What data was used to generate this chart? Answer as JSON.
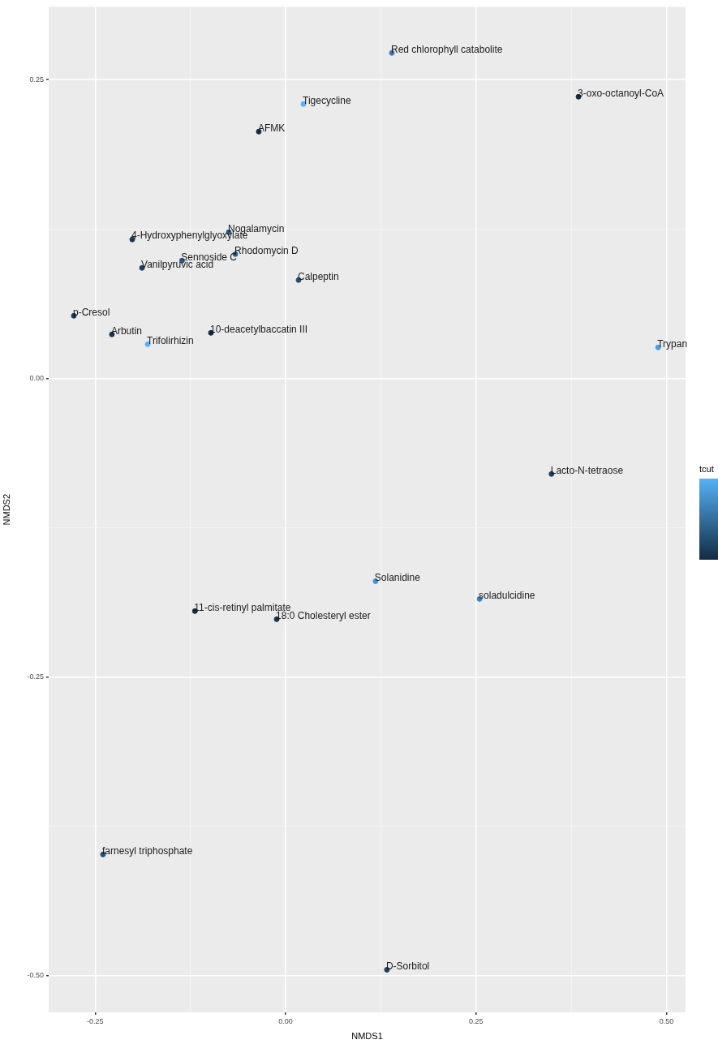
{
  "chart_data": {
    "type": "scatter",
    "xlabel": "NMDS1",
    "ylabel": "NMDS2",
    "clabel": "tcut",
    "x": [
      0.1395,
      0.3845,
      0.0234,
      -0.0352,
      -0.0746,
      -0.2013,
      -0.066,
      -0.136,
      -0.1885,
      0.017,
      -0.278,
      -0.228,
      -0.098,
      -0.181,
      0.489,
      0.349,
      0.118,
      0.2546,
      -0.119,
      -0.0117,
      -0.2397,
      0.133
    ],
    "values": [
      0.2724,
      0.2357,
      0.2296,
      0.2065,
      0.1223,
      0.1162,
      0.1039,
      0.0985,
      0.0924,
      0.0822,
      0.0523,
      0.0367,
      0.038,
      0.0285,
      0.0258,
      -0.0802,
      -0.17,
      -0.1848,
      -0.195,
      -0.2018,
      -0.3988,
      -0.4953
    ],
    "colors": [
      "#3a7ab5",
      "#132b43",
      "#56b1f7",
      "#16304a",
      "#2a5a86",
      "#1a3650",
      "#2e6496",
      "#2b5d8a",
      "#1f4060",
      "#24507a",
      "#1d3c5a",
      "#1a3650",
      "#132b43",
      "#56b1f7",
      "#4a9de0",
      "#1f4060",
      "#4a95d5",
      "#3f83c0",
      "#132b43",
      "#1a3650",
      "#24507a",
      "#1f4060"
    ],
    "annotations": [
      {
        "text": "Red chlorophyll catabolite",
        "x": 0.1395,
        "y": 0.2724
      },
      {
        "text": "3-oxo-octanoyl-CoA",
        "x": 0.3845,
        "y": 0.2357
      },
      {
        "text": "Tigecycline",
        "x": 0.0234,
        "y": 0.2296
      },
      {
        "text": "AFMK",
        "x": -0.0352,
        "y": 0.2065
      },
      {
        "text": "Nogalamycin",
        "x": -0.0746,
        "y": 0.1223
      },
      {
        "text": "4-Hydroxyphenylglyoxylate",
        "x": -0.2013,
        "y": 0.1162
      },
      {
        "text": "Rhodomycin D",
        "x": -0.066,
        "y": 0.1039
      },
      {
        "text": "Sennoside C",
        "x": -0.136,
        "y": 0.0985
      },
      {
        "text": "Vanilpyruvic acid",
        "x": -0.1885,
        "y": 0.0924
      },
      {
        "text": "Calpeptin",
        "x": 0.017,
        "y": 0.0822
      },
      {
        "text": "p-Cresol",
        "x": -0.278,
        "y": 0.0523
      },
      {
        "text": "Arbutin",
        "x": -0.228,
        "y": 0.0367
      },
      {
        "text": "10-deacetylbaccatin III",
        "x": -0.098,
        "y": 0.038
      },
      {
        "text": "Trifolirhizin",
        "x": -0.181,
        "y": 0.0285
      },
      {
        "text": "Trypan",
        "x": 0.489,
        "y": 0.0258
      },
      {
        "text": "Lacto-N-tetraose",
        "x": 0.349,
        "y": -0.0802
      },
      {
        "text": "Solanidine",
        "x": 0.118,
        "y": -0.17
      },
      {
        "text": "soladulcidine",
        "x": 0.2546,
        "y": -0.1848
      },
      {
        "text": "11-cis-retinyl palmitate",
        "x": -0.119,
        "y": -0.195
      },
      {
        "text": "18:0 Cholesteryl ester",
        "x": -0.0117,
        "y": -0.2018
      },
      {
        "text": "farnesyl triphosphate",
        "x": -0.2397,
        "y": -0.3988
      },
      {
        "text": "D-Sorbitol",
        "x": 0.133,
        "y": -0.4953
      }
    ],
    "xlim": [
      -0.311,
      0.525
    ],
    "ylim": [
      -0.531,
      0.311
    ],
    "xticks": [
      {
        "value": -0.25,
        "label": "-0.25"
      },
      {
        "value": -0.125,
        "label": null
      },
      {
        "value": 0,
        "label": "0.00"
      },
      {
        "value": 0.125,
        "label": null
      },
      {
        "value": 0.25,
        "label": "0.25"
      },
      {
        "value": 0.375,
        "label": null
      },
      {
        "value": 0.5,
        "label": "0.50"
      }
    ],
    "yticks": [
      {
        "value": -0.5,
        "label": "-0.50"
      },
      {
        "value": -0.375,
        "label": null
      },
      {
        "value": -0.25,
        "label": "-0.25"
      },
      {
        "value": -0.125,
        "label": null
      },
      {
        "value": 0,
        "label": "0.00"
      },
      {
        "value": 0.125,
        "label": null
      },
      {
        "value": 0.25,
        "label": "0.25"
      }
    ],
    "grid": true,
    "marker": "circle",
    "legend": false
  }
}
